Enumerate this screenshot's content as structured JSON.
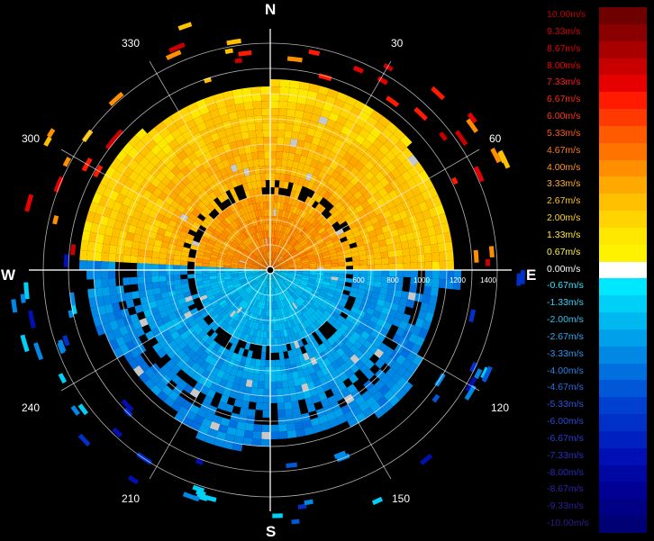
{
  "compass": {
    "north": "N",
    "east": "E",
    "south": "S",
    "west": "W"
  },
  "azimuth_labels": [
    "30",
    "60",
    "120",
    "150",
    "210",
    "240",
    "300",
    "330"
  ],
  "range_labels": [
    "600",
    "800",
    "1000",
    "1200",
    "1400"
  ],
  "colors": {
    "background": "#000000",
    "grid": "#ffffff",
    "zero": "#ffffff"
  },
  "legend": {
    "unit": "m/s",
    "entries": [
      {
        "label": "10.00m/s",
        "color": "#6e0000",
        "text_color": "#c40000"
      },
      {
        "label": "9.33m/s",
        "color": "#8a0000",
        "text_color": "#d40000"
      },
      {
        "label": "8.67m/s",
        "color": "#a80000",
        "text_color": "#e00000"
      },
      {
        "label": "8.00m/s",
        "color": "#c80000",
        "text_color": "#ee0000"
      },
      {
        "label": "7.33m/s",
        "color": "#e60000",
        "text_color": "#ff1a1a"
      },
      {
        "label": "6.67m/s",
        "color": "#ff1a00",
        "text_color": "#ff2a10"
      },
      {
        "label": "6.00m/s",
        "color": "#ff3a00",
        "text_color": "#ff3a10"
      },
      {
        "label": "5.33m/s",
        "color": "#ff5a00",
        "text_color": "#ff5a10"
      },
      {
        "label": "4.67m/s",
        "color": "#ff7400",
        "text_color": "#ff7a20"
      },
      {
        "label": "4.00m/s",
        "color": "#ff8e00",
        "text_color": "#ff9420"
      },
      {
        "label": "3.33m/s",
        "color": "#ffa800",
        "text_color": "#ffae20"
      },
      {
        "label": "2.67m/s",
        "color": "#ffc000",
        "text_color": "#ffc420"
      },
      {
        "label": "2.00m/s",
        "color": "#ffd400",
        "text_color": "#ffd820"
      },
      {
        "label": "1.33m/s",
        "color": "#ffe800",
        "text_color": "#ffea30"
      },
      {
        "label": "0.67m/s",
        "color": "#fff200",
        "text_color": "#fff440"
      },
      {
        "label": "0.00m/s",
        "color": "#ffffff",
        "text_color": "#ffffff"
      },
      {
        "label": "-0.67m/s",
        "color": "#00e8ff",
        "text_color": "#30e8ff"
      },
      {
        "label": "-1.33m/s",
        "color": "#00d0f8",
        "text_color": "#30d4f8"
      },
      {
        "label": "-2.00m/s",
        "color": "#00b8f0",
        "text_color": "#30c0f0"
      },
      {
        "label": "-2.67m/s",
        "color": "#00a0ea",
        "text_color": "#30a8ee"
      },
      {
        "label": "-3.33m/s",
        "color": "#0088e4",
        "text_color": "#3094ea"
      },
      {
        "label": "-4.00m/s",
        "color": "#0070de",
        "text_color": "#2a80e4"
      },
      {
        "label": "-4.67m/s",
        "color": "#0058d8",
        "text_color": "#2a6ce0"
      },
      {
        "label": "-5.33m/s",
        "color": "#0040d0",
        "text_color": "#2a58dc"
      },
      {
        "label": "-6.00m/s",
        "color": "#0030c8",
        "text_color": "#2a48d4"
      },
      {
        "label": "-6.67m/s",
        "color": "#0020c0",
        "text_color": "#2a3cce"
      },
      {
        "label": "-7.33m/s",
        "color": "#0010b4",
        "text_color": "#2a30c4"
      },
      {
        "label": "-8.00m/s",
        "color": "#0008a4",
        "text_color": "#2a28b8"
      },
      {
        "label": "-8.67m/s",
        "color": "#000094",
        "text_color": "#2a24a8"
      },
      {
        "label": "-9.33m/s",
        "color": "#000084",
        "text_color": "#2a2098"
      },
      {
        "label": "-10.00m/s",
        "color": "#000074",
        "text_color": "#2a1c88"
      }
    ]
  }
}
